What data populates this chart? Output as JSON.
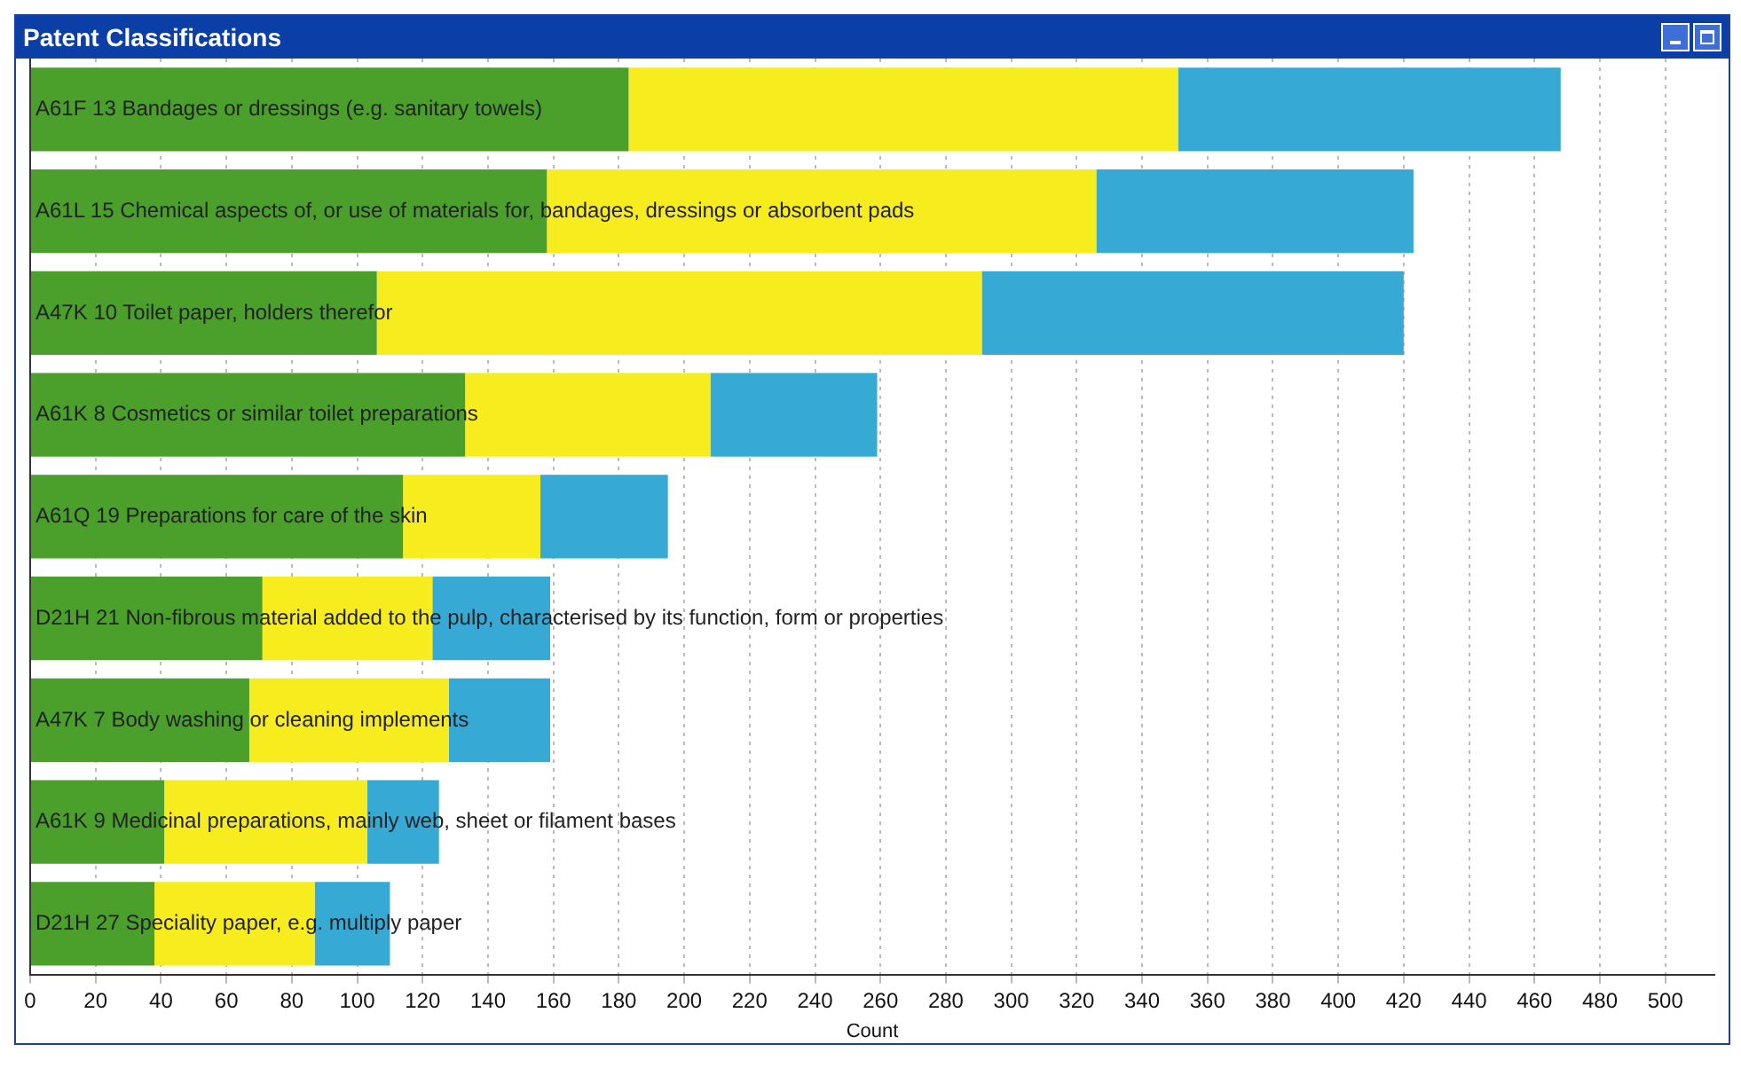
{
  "chart_data": {
    "type": "bar",
    "orientation": "horizontal",
    "stacked": true,
    "title": "Patent Classifications",
    "xlabel": "Count",
    "categories": [
      "A61F 13 Bandages or dressings (e.g. sanitary towels)",
      "A61L 15 Chemical aspects of, or use of materials for, bandages, dressings or absorbent pads",
      "A47K 10 Toilet paper, holders therefor",
      "A61K 8 Cosmetics or similar toilet preparations",
      "A61Q 19 Preparations for care of the skin",
      "D21H 21 Non-fibrous material added to the pulp, characterised by its function, form or properties",
      "A47K 7 Body washing or cleaning implements",
      "A61K 9 Medicinal preparations, mainly web, sheet or filament bases",
      "D21H 27 Speciality paper, e.g. multiply paper"
    ],
    "series": [
      {
        "color": "#4b9f2b",
        "values": [
          183,
          158,
          106,
          133,
          114,
          71,
          67,
          41,
          38
        ]
      },
      {
        "color": "#f7ec1d",
        "values": [
          168,
          168,
          185,
          75,
          42,
          52,
          61,
          62,
          49
        ]
      },
      {
        "color": "#36a9d5",
        "values": [
          117,
          97,
          129,
          51,
          39,
          36,
          31,
          22,
          23
        ]
      }
    ],
    "xlim": [
      0,
      515
    ],
    "xticks": [
      0,
      20,
      40,
      60,
      80,
      100,
      120,
      140,
      160,
      180,
      200,
      220,
      240,
      260,
      280,
      300,
      320,
      340,
      360,
      380,
      400,
      420,
      440,
      460,
      480,
      500
    ],
    "grid": "x",
    "legend": false
  }
}
